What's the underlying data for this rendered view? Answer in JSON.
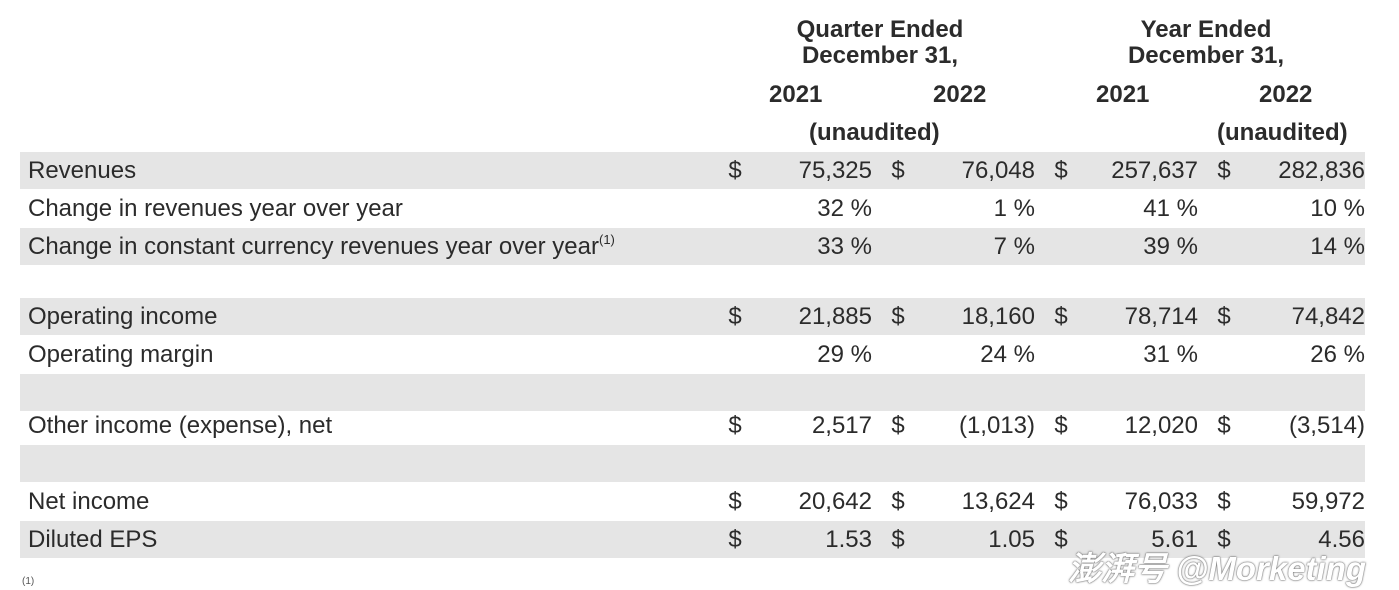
{
  "header": {
    "quarter_group": [
      "Quarter Ended",
      "December 31,"
    ],
    "year_group": [
      "Year Ended",
      "December 31,"
    ],
    "years": [
      "2021",
      "2022",
      "2021",
      "2022"
    ],
    "unaudited_quarter": "(unaudited)",
    "unaudited_year": "(unaudited)"
  },
  "rows": [
    {
      "label": "Revenues",
      "sup": "",
      "shaded": true,
      "cur": true,
      "values": [
        "75,325",
        "76,048",
        "257,637",
        "282,836"
      ]
    },
    {
      "label": "Change in revenues year over year",
      "sup": "",
      "shaded": false,
      "cur": false,
      "values": [
        "32 %",
        "1 %",
        "41 %",
        "10 %"
      ]
    },
    {
      "label": "Change in constant currency revenues year over year",
      "sup": "(1)",
      "shaded": true,
      "cur": false,
      "values": [
        "33 %",
        "7 %",
        "39 %",
        "14 %"
      ]
    },
    {
      "label": "",
      "sup": "",
      "shaded": false,
      "cur": false,
      "values": [
        "",
        "",
        "",
        ""
      ]
    },
    {
      "label": "Operating income",
      "sup": "",
      "shaded": true,
      "cur": true,
      "values": [
        "21,885",
        "18,160",
        "78,714",
        "74,842"
      ]
    },
    {
      "label": "Operating margin",
      "sup": "",
      "shaded": false,
      "cur": false,
      "values": [
        "29 %",
        "24 %",
        "31 %",
        "26 %"
      ]
    },
    {
      "label": "",
      "sup": "",
      "shaded": true,
      "cur": false,
      "values": [
        "",
        "",
        "",
        ""
      ]
    },
    {
      "label": "Other income (expense), net",
      "sup": "",
      "shaded": false,
      "cur": true,
      "values": [
        "2,517",
        "(1,013)",
        "12,020",
        "(3,514)"
      ]
    },
    {
      "label": "",
      "sup": "",
      "shaded": true,
      "cur": false,
      "values": [
        "",
        "",
        "",
        ""
      ]
    },
    {
      "label": "Net income",
      "sup": "",
      "shaded": false,
      "cur": true,
      "values": [
        "20,642",
        "13,624",
        "76,033",
        "59,972"
      ]
    },
    {
      "label": "Diluted EPS",
      "sup": "",
      "shaded": true,
      "cur": true,
      "values": [
        "1.53",
        "1.05",
        "5.61",
        "4.56"
      ]
    }
  ],
  "currency_symbol": "$",
  "footnote_marker": "(1)",
  "watermark": "澎湃号 @Morketing"
}
